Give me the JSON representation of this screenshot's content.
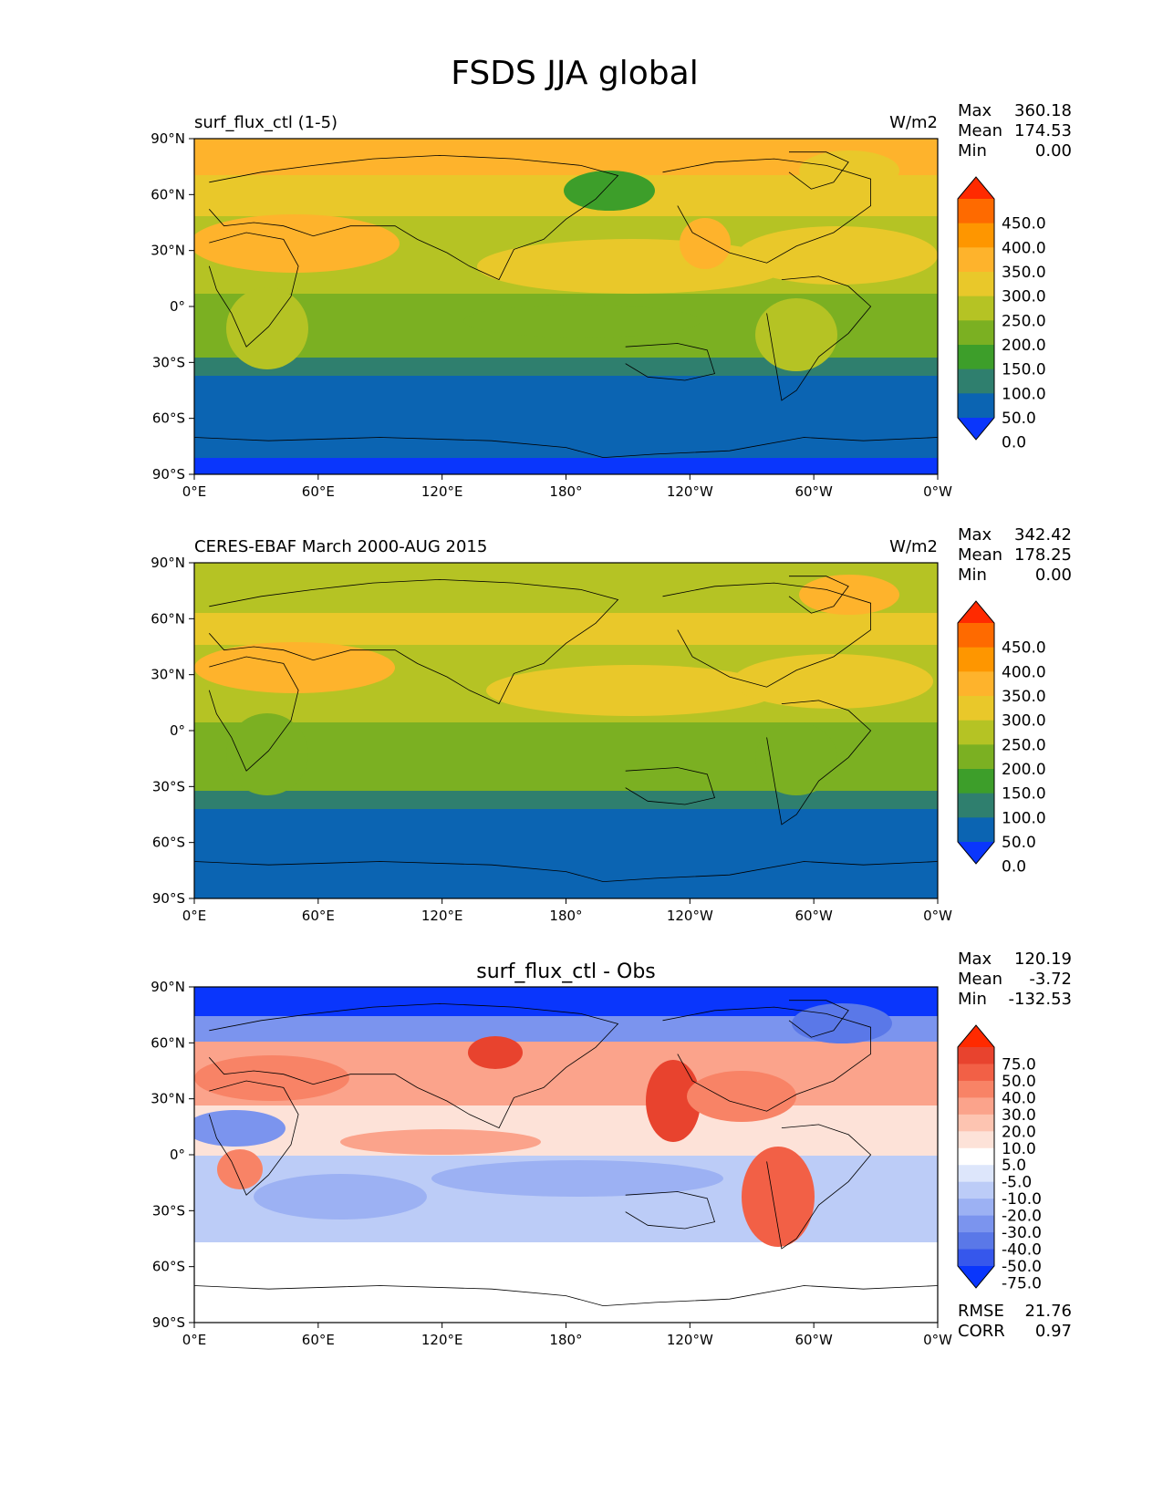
{
  "title": "FSDS JJA global",
  "chart_data": [
    {
      "type": "heatmap",
      "title_left": "surf_flux_ctl (1-5)",
      "title_right": "W/m2",
      "title_center": "",
      "stats": [
        {
          "label": "Max",
          "value": "360.18"
        },
        {
          "label": "Mean",
          "value": "174.53"
        },
        {
          "label": "Min",
          "value": "0.00"
        }
      ],
      "extra_stats": [],
      "x_ticks": [
        "0°E",
        "60°E",
        "120°E",
        "180°",
        "120°W",
        "60°W",
        "0°W"
      ],
      "y_ticks": [
        "90°N",
        "60°N",
        "30°N",
        "0°",
        "30°S",
        "60°S",
        "90°S"
      ],
      "colorbar": {
        "labels": [
          "450.0",
          "400.0",
          "350.0",
          "300.0",
          "250.0",
          "200.0",
          "150.0",
          "100.0",
          "50.0",
          "0.0"
        ],
        "colors": [
          "#ff2a00",
          "#fe6a00",
          "#fe9600",
          "#feb32c",
          "#e9c82a",
          "#b5c324",
          "#7bb022",
          "#3d9e2a",
          "#2f7f6e",
          "#0b64b2",
          "#0a36fc"
        ]
      }
    },
    {
      "type": "heatmap",
      "title_left": "CERES-EBAF March 2000-AUG 2015",
      "title_right": "W/m2",
      "title_center": "",
      "stats": [
        {
          "label": "Max",
          "value": "342.42"
        },
        {
          "label": "Mean",
          "value": "178.25"
        },
        {
          "label": "Min",
          "value": "0.00"
        }
      ],
      "extra_stats": [],
      "x_ticks": [
        "0°E",
        "60°E",
        "120°E",
        "180°",
        "120°W",
        "60°W",
        "0°W"
      ],
      "y_ticks": [
        "90°N",
        "60°N",
        "30°N",
        "0°",
        "30°S",
        "60°S",
        "90°S"
      ],
      "colorbar": {
        "labels": [
          "450.0",
          "400.0",
          "350.0",
          "300.0",
          "250.0",
          "200.0",
          "150.0",
          "100.0",
          "50.0",
          "0.0"
        ],
        "colors": [
          "#ff2a00",
          "#fe6a00",
          "#fe9600",
          "#feb32c",
          "#e9c82a",
          "#b5c324",
          "#7bb022",
          "#3d9e2a",
          "#2f7f6e",
          "#0b64b2",
          "#0a36fc"
        ]
      }
    },
    {
      "type": "heatmap",
      "title_left": "",
      "title_right": "",
      "title_center": "surf_flux_ctl - Obs",
      "stats": [
        {
          "label": "Max",
          "value": "120.19"
        },
        {
          "label": "Mean",
          "value": "-3.72"
        },
        {
          "label": "Min",
          "value": "-132.53"
        }
      ],
      "extra_stats": [
        {
          "label": "RMSE",
          "value": "21.76"
        },
        {
          "label": "CORR",
          "value": "0.97"
        }
      ],
      "x_ticks": [
        "0°E",
        "60°E",
        "120°E",
        "180°",
        "120°W",
        "60°W",
        "0°W"
      ],
      "y_ticks": [
        "90°N",
        "60°N",
        "30°N",
        "0°",
        "30°S",
        "60°S",
        "90°S"
      ],
      "colorbar": {
        "labels": [
          "75.0",
          "50.0",
          "40.0",
          "30.0",
          "20.0",
          "10.0",
          "5.0",
          "-5.0",
          "-10.0",
          "-20.0",
          "-30.0",
          "-40.0",
          "-50.0",
          "-75.0"
        ],
        "colors": [
          "#ff2a00",
          "#e8432e",
          "#f26046",
          "#f88366",
          "#fba38b",
          "#fdc4b1",
          "#fde2d8",
          "#ffffff",
          "#dde6fb",
          "#bcccf7",
          "#9cb1f3",
          "#7b94ee",
          "#5a78e8",
          "#3657ec",
          "#0a36fc"
        ]
      }
    }
  ]
}
